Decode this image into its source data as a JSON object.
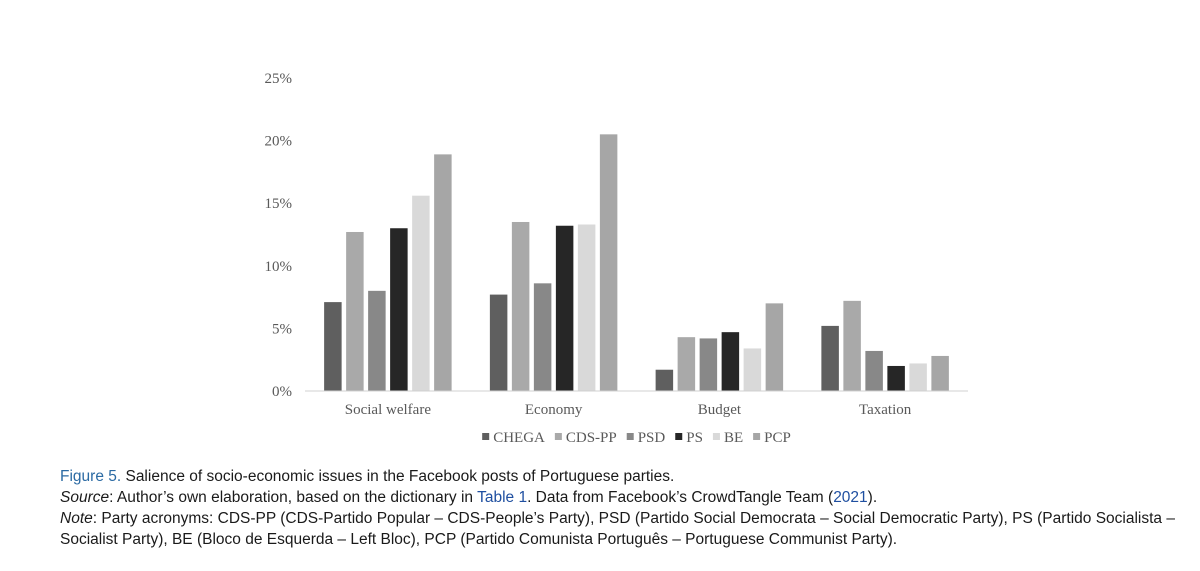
{
  "chart_data": {
    "type": "bar",
    "categories": [
      "Social welfare",
      "Economy",
      "Budget",
      "Taxation"
    ],
    "series": [
      {
        "name": "CHEGA",
        "color": "#5f5f5f",
        "values": [
          7.1,
          7.7,
          1.7,
          5.2
        ]
      },
      {
        "name": "CDS-PP",
        "color": "#a9a9a9",
        "values": [
          12.7,
          13.5,
          4.3,
          7.2
        ]
      },
      {
        "name": "PSD",
        "color": "#888888",
        "values": [
          8.0,
          8.6,
          4.2,
          3.2
        ]
      },
      {
        "name": "PS",
        "color": "#262626",
        "values": [
          13.0,
          13.2,
          4.7,
          2.0
        ]
      },
      {
        "name": "BE",
        "color": "#d9d9d9",
        "values": [
          15.6,
          13.3,
          3.4,
          2.2
        ]
      },
      {
        "name": "PCP",
        "color": "#a6a6a6",
        "values": [
          18.9,
          20.5,
          7.0,
          2.8
        ]
      }
    ],
    "yticks": [
      "0%",
      "5%",
      "10%",
      "15%",
      "20%",
      "25%"
    ],
    "ylim": [
      0,
      25
    ],
    "legend_position": "bottom",
    "grid": false
  },
  "caption": {
    "figure_label": "Figure 5.",
    "title": " Salience of socio-economic issues in the Facebook posts of Portuguese parties.",
    "source_label": "Source",
    "source_text_1": ": Author’s own elaboration, based on the dictionary in ",
    "source_ref_table": "Table 1",
    "source_text_2": ". Data from Facebook’s CrowdTangle Team (",
    "source_ref_year": "2021",
    "source_text_3": ").",
    "note_label": "Note",
    "note_text": ": Party acronyms: CDS-PP (CDS-Partido Popular – CDS-People’s Party), PSD (Partido Social Democrata – Social Democratic Party), PS (Partido Socialista – Socialist Party), BE (Bloco de Esquerda – Left Bloc), PCP (Partido Comunista Português – Portuguese Communist Party)."
  }
}
